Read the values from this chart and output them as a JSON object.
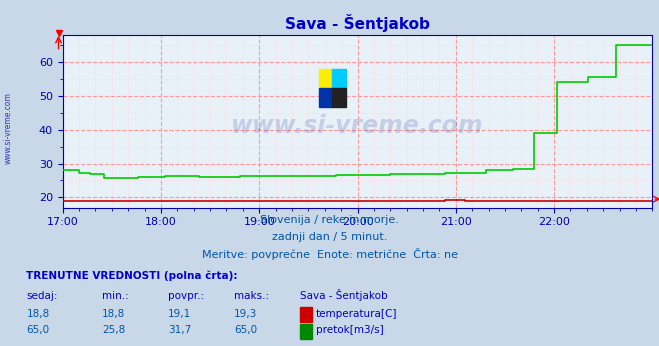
{
  "title": "Sava - Šentjakob",
  "bg_color": "#c8d8e8",
  "plot_bg_color": "#e8f0f8",
  "grid_color_major": "#ff9999",
  "grid_color_minor": "#ffdddd",
  "title_color": "#0000cc",
  "axis_color": "#0000aa",
  "text_color": "#0055aa",
  "watermark_text": "www.si-vreme.com",
  "watermark_color": "#1a3a9a",
  "watermark_alpha": 0.18,
  "subtitle_lines": [
    "Slovenija / reke in morje.",
    "zadnji dan / 5 minut.",
    "Meritve: povprečne  Enote: metrične  Črta: ne"
  ],
  "xlim_min": 0,
  "xlim_max": 432,
  "ylim_min": 17,
  "ylim_max": 68,
  "yticks": [
    20,
    30,
    40,
    50,
    60
  ],
  "xtick_positions": [
    0,
    72,
    144,
    216,
    288,
    360
  ],
  "xtick_labels": [
    "17:00",
    "18:00",
    "19:00",
    "20:00",
    "21:00",
    "22:00"
  ],
  "temp_color": "#cc0000",
  "flow_color": "#00cc00",
  "legend_label1": "temperatura[C]",
  "legend_label2": "pretok[m3/s]",
  "legend_color1": "#cc0000",
  "legend_color2": "#008800",
  "table_header": "TRENUTNE VREDNOSTI (polna črta):",
  "table_col_headers": [
    "sedaj:",
    "min.:",
    "povpr.:",
    "maks.:",
    "Sava - Šentjakob"
  ],
  "table_row1": [
    "18,8",
    "18,8",
    "19,1",
    "19,3"
  ],
  "table_row2": [
    "65,0",
    "25,8",
    "31,7",
    "65,0"
  ],
  "sidebar_text": "www.si-vreme.com",
  "logo_colors": [
    "#ffee00",
    "#00ccff",
    "#0033aa",
    "#222222"
  ]
}
